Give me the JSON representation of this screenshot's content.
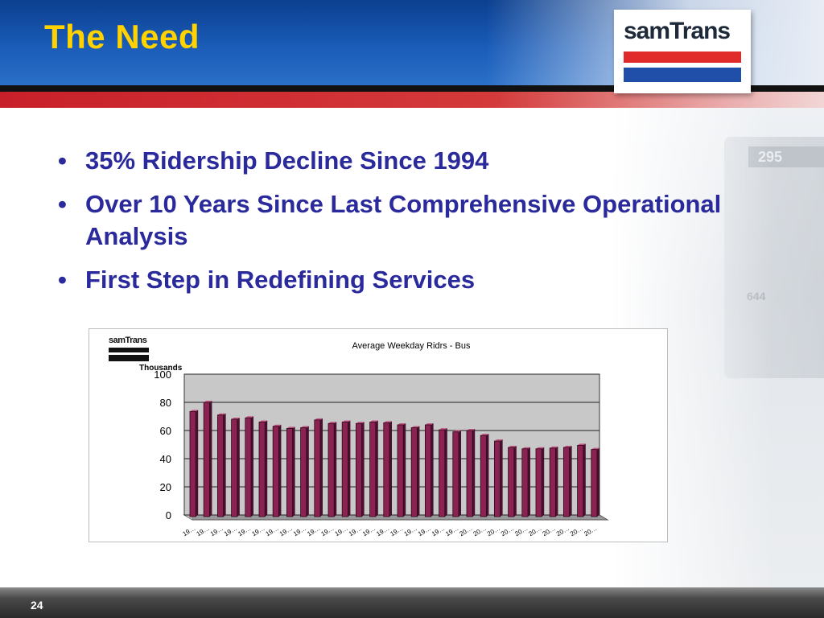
{
  "slide": {
    "title": "The Need",
    "logo_text": "samTrans",
    "page_number": "24",
    "bullets": [
      "35% Ridership Decline Since 1994",
      "Over 10 Years Since Last Comprehensive Operational Analysis",
      "First Step in Redefining Services"
    ],
    "colors": {
      "header_blue": "#1a5cb8",
      "title_yellow": "#ffd200",
      "accent_red": "#d43a3a",
      "bullet_text": "#2a2a9c",
      "bar_fill": "#8b2252"
    },
    "background_bus": {
      "sign": "295",
      "number": "644"
    }
  },
  "chart_data": {
    "type": "bar",
    "title": "Average Weekday Ridrs - Bus",
    "ylabel": "Thousands",
    "ylim": [
      0,
      100
    ],
    "yticks": [
      0,
      20,
      40,
      60,
      80,
      100
    ],
    "logo_text": "samTrans",
    "categories": [
      "19…",
      "19…",
      "19…",
      "19…",
      "19…",
      "19…",
      "19…",
      "19…",
      "19…",
      "19…",
      "19…",
      "19…",
      "19…",
      "19…",
      "19…",
      "19…",
      "19…",
      "19…",
      "19…",
      "19…",
      "20…",
      "20…",
      "20…",
      "20…",
      "20…",
      "20…",
      "20…",
      "20…",
      "20…",
      "20…"
    ],
    "values": [
      73.5,
      80,
      71,
      68,
      69,
      66,
      63,
      61.5,
      62,
      67.5,
      65,
      66,
      65,
      66,
      65.5,
      64,
      62,
      64,
      60.5,
      59,
      60,
      56.5,
      52.5,
      48,
      47,
      47,
      47.5,
      48,
      49.5,
      46.5
    ],
    "grid": true
  }
}
